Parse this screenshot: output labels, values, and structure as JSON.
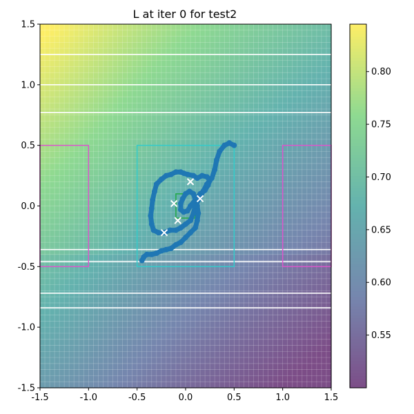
{
  "chart_data": {
    "type": "heatmap",
    "title": "L at iter 0 for test2",
    "xlim": [
      -1.5,
      1.5
    ],
    "ylim": [
      -1.5,
      1.5
    ],
    "xticks": [
      "-1.5",
      "-1.0",
      "-0.5",
      "0.0",
      "0.5",
      "1.0",
      "1.5"
    ],
    "yticks": [
      "-1.5",
      "-1.0",
      "-0.5",
      "0.0",
      "0.5",
      "1.0",
      "1.5"
    ],
    "colormap": "viridis",
    "colorbar": {
      "range": [
        0.5,
        0.845
      ],
      "ticks": [
        "0.55",
        "0.60",
        "0.65",
        "0.70",
        "0.75",
        "0.80"
      ]
    },
    "grid": true,
    "horizontal_lines_y": [
      1.25,
      1.0,
      0.77,
      -0.36,
      -0.46,
      -0.72,
      -0.84
    ],
    "rectangles": [
      {
        "name": "left",
        "x0": -1.5,
        "y0": -0.5,
        "x1": -1.0,
        "y1": 0.5,
        "color": "#dd55cc"
      },
      {
        "name": "right",
        "x0": 1.0,
        "y0": -0.5,
        "x1": 1.5,
        "y1": 0.5,
        "color": "#dd55cc"
      },
      {
        "name": "center",
        "x0": -0.5,
        "y0": -0.5,
        "x1": 0.5,
        "y1": 0.5,
        "color": "#33cccc"
      },
      {
        "name": "inner",
        "x0": -0.1,
        "y0": -0.1,
        "x1": 0.1,
        "y1": 0.1,
        "color": "#22aa44"
      }
    ],
    "trajectory": {
      "color": "#1f77b4",
      "points": [
        [
          -0.45,
          -0.45
        ],
        [
          -0.43,
          -0.42
        ],
        [
          -0.4,
          -0.4
        ],
        [
          -0.35,
          -0.4
        ],
        [
          -0.3,
          -0.39
        ],
        [
          -0.25,
          -0.37
        ],
        [
          -0.2,
          -0.36
        ],
        [
          -0.15,
          -0.35
        ],
        [
          -0.1,
          -0.32
        ],
        [
          -0.05,
          -0.3
        ],
        [
          0.0,
          -0.26
        ],
        [
          0.05,
          -0.22
        ],
        [
          0.1,
          -0.18
        ],
        [
          0.12,
          -0.12
        ],
        [
          0.13,
          -0.06
        ],
        [
          0.12,
          0.0
        ],
        [
          0.1,
          0.05
        ],
        [
          0.08,
          0.1
        ],
        [
          0.04,
          0.12
        ],
        [
          0.0,
          0.1
        ],
        [
          -0.03,
          0.06
        ],
        [
          -0.05,
          0.02
        ],
        [
          -0.05,
          -0.03
        ],
        [
          -0.02,
          -0.05
        ],
        [
          0.02,
          -0.04
        ],
        [
          0.05,
          -0.0
        ],
        [
          0.1,
          0.05
        ],
        [
          0.15,
          0.1
        ],
        [
          0.2,
          0.13
        ],
        [
          0.23,
          0.17
        ],
        [
          0.25,
          0.21
        ],
        [
          0.22,
          0.24
        ],
        [
          0.17,
          0.25
        ],
        [
          0.12,
          0.23
        ],
        [
          0.08,
          0.25
        ],
        [
          0.02,
          0.26
        ],
        [
          -0.02,
          0.27
        ],
        [
          -0.05,
          0.28
        ],
        [
          -0.1,
          0.28
        ],
        [
          -0.15,
          0.26
        ],
        [
          -0.2,
          0.25
        ],
        [
          -0.25,
          0.22
        ],
        [
          -0.3,
          0.18
        ],
        [
          -0.32,
          0.12
        ],
        [
          -0.34,
          0.05
        ],
        [
          -0.35,
          -0.02
        ],
        [
          -0.36,
          -0.08
        ],
        [
          -0.35,
          -0.15
        ],
        [
          -0.33,
          -0.2
        ],
        [
          -0.28,
          -0.22
        ],
        [
          -0.22,
          -0.22
        ],
        [
          -0.16,
          -0.2
        ],
        [
          -0.1,
          -0.2
        ],
        [
          -0.05,
          -0.18
        ],
        [
          0.0,
          -0.15
        ],
        [
          0.05,
          -0.12
        ],
        [
          0.08,
          -0.06
        ],
        [
          0.1,
          0.0
        ],
        [
          0.14,
          0.06
        ],
        [
          0.18,
          0.12
        ],
        [
          0.22,
          0.18
        ],
        [
          0.27,
          0.23
        ],
        [
          0.3,
          0.3
        ],
        [
          0.32,
          0.38
        ],
        [
          0.35,
          0.45
        ],
        [
          0.4,
          0.5
        ],
        [
          0.45,
          0.52
        ],
        [
          0.5,
          0.5
        ]
      ]
    },
    "markers": [
      {
        "x": 0.05,
        "y": 0.2,
        "marker": "x",
        "color": "#ffffff"
      },
      {
        "x": -0.12,
        "y": 0.02,
        "marker": "x",
        "color": "#ffffff"
      },
      {
        "x": 0.15,
        "y": 0.06,
        "marker": "x",
        "color": "#ffffff"
      },
      {
        "x": -0.08,
        "y": -0.12,
        "marker": "x",
        "color": "#ffffff"
      },
      {
        "x": -0.22,
        "y": -0.22,
        "marker": "x",
        "color": "#ffffff"
      }
    ]
  }
}
